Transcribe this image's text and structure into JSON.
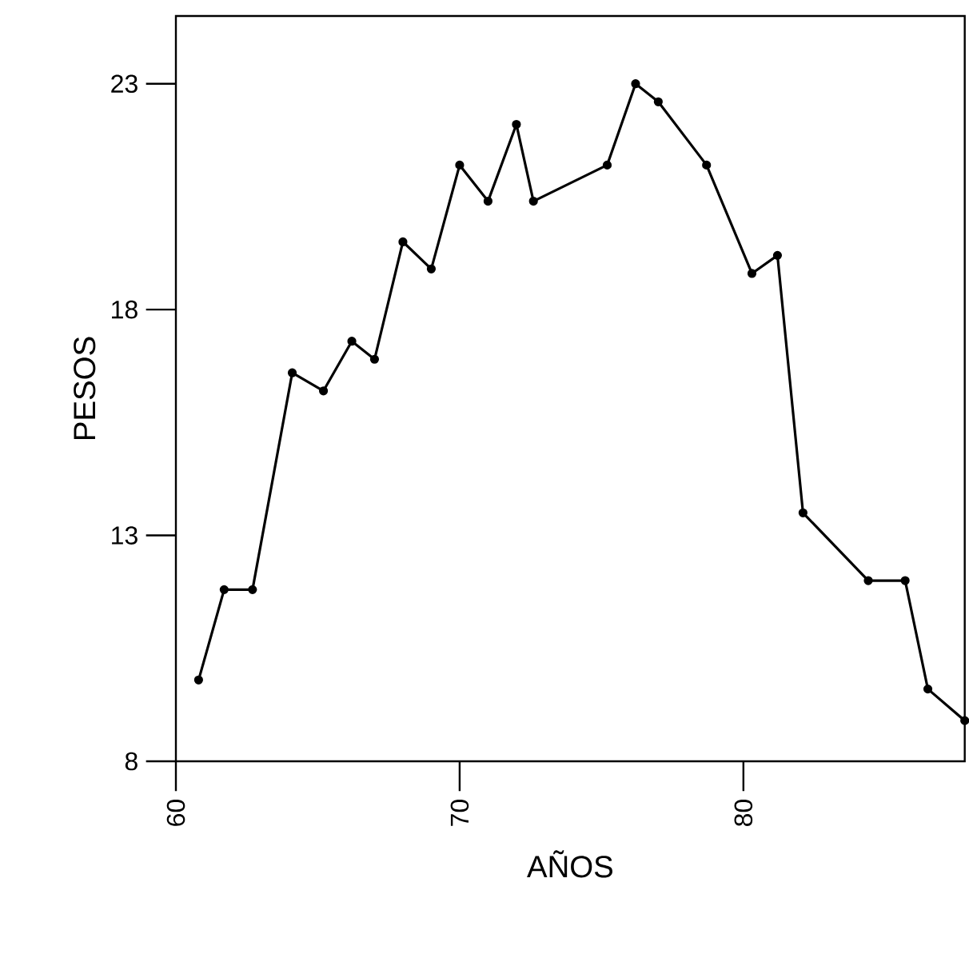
{
  "chart_data": {
    "type": "line",
    "xlabel": "AÑOS",
    "ylabel": "PESOS",
    "x": [
      60.8,
      61.7,
      62.7,
      64.1,
      65.2,
      66.2,
      67.0,
      68.0,
      69.0,
      70.0,
      71.0,
      72.0,
      72.6,
      75.2,
      76.2,
      77.0,
      78.7,
      80.3,
      81.2,
      82.1,
      84.4,
      85.7,
      86.5,
      87.8
    ],
    "values": [
      9.8,
      11.8,
      11.8,
      16.6,
      16.2,
      17.3,
      16.9,
      19.5,
      18.9,
      21.2,
      20.4,
      22.1,
      20.4,
      21.2,
      23.0,
      22.6,
      21.2,
      18.8,
      19.2,
      13.5,
      12.0,
      12.0,
      9.6,
      8.9
    ],
    "color": "#000000",
    "marker": "circle",
    "line_style": "solid",
    "grid": false,
    "xlim": [
      60,
      87.8
    ],
    "ylim": [
      8,
      24.5
    ],
    "xticks": [
      60,
      70,
      80
    ],
    "yticks": [
      8,
      13,
      18,
      23
    ]
  }
}
